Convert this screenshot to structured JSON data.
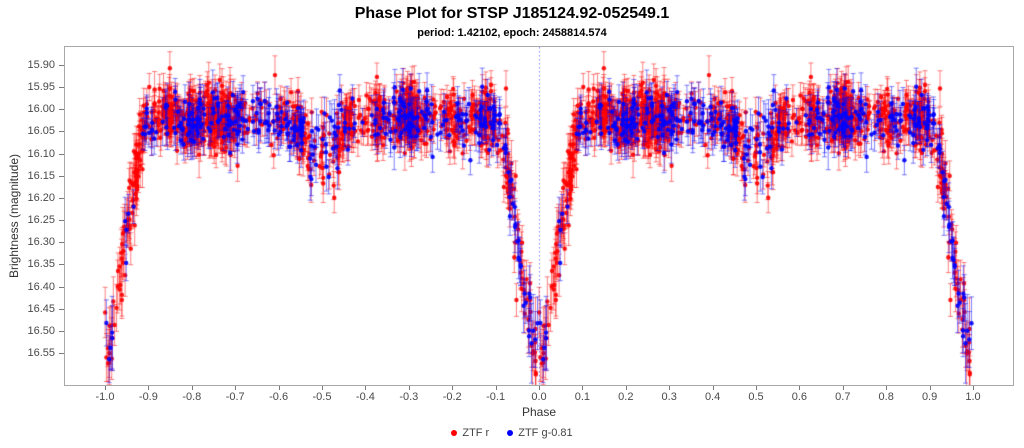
{
  "title": "Phase Plot for STSP J185124.92-052549.1",
  "subtitle": "period: 1.42102, epoch: 2458814.574",
  "chart_data": {
    "type": "scatter",
    "title": "Phase Plot for STSP J185124.92-052549.1",
    "subtitle": "period: 1.42102, epoch: 2458814.574",
    "parameters": {
      "object": "STSP J185124.92-052549.1",
      "period": "1.42102",
      "epoch": "2458814.574"
    },
    "xlabel": "Phase",
    "ylabel": "Brightness (magnitude)",
    "xlim": [
      -1.09,
      1.09
    ],
    "ylim": [
      16.59,
      15.86
    ],
    "y_axis_inverted": true,
    "grid": false,
    "legend_position": "bottom-center",
    "x_tick_labels": [
      "-1.0",
      "-0.9",
      "-0.8",
      "-0.7",
      "-0.6",
      "-0.5",
      "-0.4",
      "-0.3",
      "-0.2",
      "-0.1",
      "0.0",
      "0.1",
      "0.2",
      "0.3",
      "0.4",
      "0.5",
      "0.6",
      "0.7",
      "0.8",
      "0.9",
      "1.0"
    ],
    "y_tick_labels": [
      "15.90",
      "15.95",
      "16.00",
      "16.05",
      "16.10",
      "16.15",
      "16.20",
      "16.25",
      "16.30",
      "16.35",
      "16.40",
      "16.45",
      "16.50",
      "16.55"
    ],
    "reference_line": {
      "x": 0.0,
      "style": "dotted",
      "color": "#8080ff"
    },
    "plot_border_color": "#a8a8a8",
    "description": "Folded light curve of an eclipsing binary plotted twice over phase -1 to 1. Out-of-eclipse brightness ~16.02 mag (scatter 15.92-16.12), deep primary eclipses to ~16.55 mag at phases 0 and ±1, shallow secondary dips to ~16.15 mag at phases ±0.5. Each point has a vertical error bar.",
    "features": {
      "out_of_eclipse_mag_range": [
        15.92,
        16.12
      ],
      "primary_minimum_mag": 16.55,
      "primary_eclipse_phases": [
        -1.0,
        0.0,
        1.0
      ],
      "primary_eclipse_half_width_phase": 0.11,
      "secondary_minimum_mag": 16.15,
      "secondary_eclipse_phases": [
        -0.5,
        0.5
      ]
    },
    "series": [
      {
        "name": "ZTF r",
        "color": "#ff0000",
        "marker": "circle",
        "error_bars": true,
        "n_base": 1100,
        "sigma_mag": 0.034,
        "err_base": 0.026,
        "err_spread": 0.009,
        "seed": 1337,
        "cluster_frac": 0.55,
        "clusters": [
          [
            0.07,
            0.06,
            0.012
          ],
          [
            0.15,
            0.07,
            0.012
          ],
          [
            0.2,
            0.11,
            0.014
          ],
          [
            0.25,
            0.11,
            0.012
          ],
          [
            0.285,
            0.09,
            0.01
          ],
          [
            0.45,
            0.05,
            0.015
          ],
          [
            0.55,
            0.08,
            0.015
          ],
          [
            0.625,
            0.05,
            0.012
          ],
          [
            0.7,
            0.22,
            0.013
          ],
          [
            0.8,
            0.05,
            0.015
          ],
          [
            0.88,
            0.07,
            0.012
          ],
          [
            0.935,
            0.04,
            0.01
          ]
        ]
      },
      {
        "name": "ZTF g-0.81",
        "color": "#0000ff",
        "marker": "circle",
        "error_bars": true,
        "n_base": 380,
        "sigma_mag": 0.03,
        "err_base": 0.03,
        "err_spread": 0.01,
        "seed": 7331,
        "cluster_frac": 0.3,
        "clusters": [
          [
            0.2,
            0.25,
            0.02
          ],
          [
            0.3,
            0.2,
            0.02
          ],
          [
            0.45,
            0.15,
            0.02
          ],
          [
            0.7,
            0.25,
            0.02
          ],
          [
            0.9,
            0.15,
            0.02
          ]
        ]
      }
    ],
    "light_curve_model": {
      "baseline_mag": 16.02,
      "primary_eclipse": {
        "center_phases": [
          0.0,
          1.0,
          -1.0
        ],
        "depth_mag": 0.53,
        "profile_phase_dist": [
          0.0,
          0.01,
          0.02,
          0.03,
          0.04,
          0.05,
          0.06,
          0.07,
          0.08,
          0.09,
          0.1,
          0.11
        ],
        "profile_depth_mag": [
          0.53,
          0.505,
          0.45,
          0.39,
          0.325,
          0.26,
          0.195,
          0.135,
          0.08,
          0.035,
          0.01,
          0.0
        ]
      },
      "secondary_eclipse": {
        "center_phase": 0.5,
        "depth_mag": 0.085,
        "half_width_phase": 0.09
      }
    }
  }
}
